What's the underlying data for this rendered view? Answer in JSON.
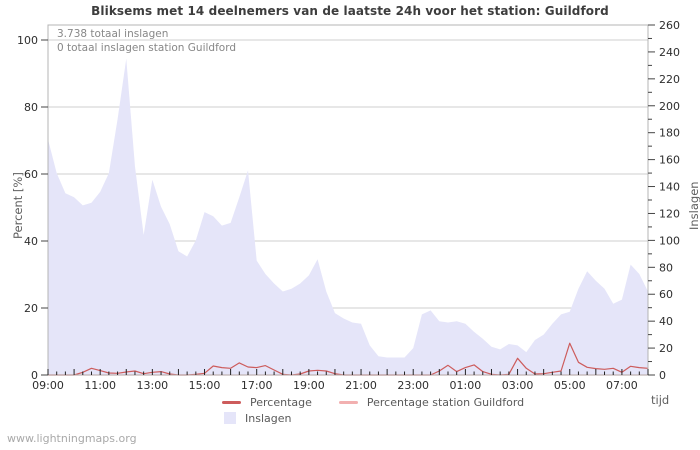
{
  "title": "Bliksems met 14 deelnemers van de laatste 24h voor het station: Guildford",
  "annotations": {
    "total_inslagen": "3.738 totaal inslagen",
    "station_inslagen": "0 totaal inslagen station Guildford"
  },
  "watermark": "www.lightningmaps.org",
  "legend": {
    "percentage": "Percentage",
    "station": "Percentage station Guildford",
    "inslagen": "Inslagen"
  },
  "colors": {
    "background": "#ffffff",
    "area": "#e5e5f9",
    "percentage_line": "#cd5c5c",
    "station_line": "#f2b0b0",
    "grid": "#cfcfcf",
    "frame": "#b4b4b4",
    "axis_tick": "#444444",
    "tick_label": "#2e2e2e"
  },
  "chart_data": {
    "type": "area+line",
    "title": "Bliksems met 14 deelnemers van de laatste 24h voor het station: Guildford",
    "x_axis": {
      "title": "tijd",
      "tick_labels": [
        "09:00",
        "11:00",
        "13:00",
        "15:00",
        "17:00",
        "19:00",
        "21:00",
        "23:00",
        "01:00",
        "03:00",
        "05:00",
        "07:00"
      ],
      "minor_tick_minutes": 20
    },
    "left_axis": {
      "title": "Percent [%]",
      "min": 0,
      "max": 100,
      "tick_step": 20
    },
    "right_axis": {
      "title": "Inslagen",
      "min": 0,
      "max": 260,
      "tick_step": 20,
      "minor_step": 10
    },
    "grid": "horizontal-only",
    "legend_position": "bottom-center",
    "time": [
      "09:00",
      "09:20",
      "09:40",
      "10:00",
      "10:20",
      "10:40",
      "11:00",
      "11:20",
      "11:40",
      "12:00",
      "12:20",
      "12:40",
      "13:00",
      "13:20",
      "13:40",
      "14:00",
      "14:20",
      "14:40",
      "15:00",
      "15:20",
      "15:40",
      "16:00",
      "16:20",
      "16:40",
      "17:00",
      "17:20",
      "17:40",
      "18:00",
      "18:20",
      "18:40",
      "19:00",
      "19:20",
      "19:40",
      "20:00",
      "20:20",
      "20:40",
      "21:00",
      "21:20",
      "21:40",
      "22:00",
      "22:20",
      "22:40",
      "23:00",
      "23:20",
      "23:40",
      "00:00",
      "00:20",
      "00:40",
      "01:00",
      "01:20",
      "01:40",
      "02:00",
      "02:20",
      "02:40",
      "03:00",
      "03:20",
      "03:40",
      "04:00",
      "04:20",
      "04:40",
      "05:00",
      "05:20",
      "05:40",
      "06:00",
      "06:20",
      "06:40",
      "07:00",
      "07:20",
      "07:40",
      "08:00"
    ],
    "series": [
      {
        "name": "Inslagen",
        "type": "area",
        "axis": "right",
        "color": "#e5e5f9",
        "values": [
          175,
          150,
          135,
          132,
          126,
          128,
          136,
          150,
          190,
          235,
          155,
          104,
          145,
          125,
          112,
          92,
          88,
          100,
          121,
          118,
          111,
          113,
          132,
          152,
          85,
          75,
          68,
          62,
          64,
          68,
          74,
          86,
          62,
          46,
          42,
          39,
          38,
          22,
          14,
          13,
          13,
          13,
          20,
          45,
          48,
          40,
          39,
          40,
          38,
          32,
          27,
          21,
          19,
          23,
          22,
          17,
          26,
          30,
          38,
          45,
          47,
          64,
          77,
          70,
          64,
          53,
          56,
          82,
          75,
          62
        ]
      },
      {
        "name": "Percentage",
        "type": "line",
        "axis": "left",
        "color": "#cd5c5c",
        "values": [
          0,
          0,
          0,
          0,
          0.8,
          2.0,
          1.3,
          0.6,
          0.5,
          0.9,
          1.2,
          0.4,
          0.8,
          1.0,
          0.3,
          0,
          0,
          0.2,
          0.5,
          2.7,
          2.2,
          2.0,
          3.6,
          2.4,
          2.2,
          2.8,
          1.5,
          0.2,
          0,
          0.3,
          1.2,
          1.4,
          1.2,
          0.4,
          0,
          0,
          0,
          0,
          0,
          0,
          0,
          0,
          0,
          0,
          0,
          1.2,
          2.9,
          1.0,
          2.2,
          3.0,
          1.0,
          0.2,
          0,
          0.2,
          5.0,
          2.0,
          0.3,
          0.4,
          0.8,
          1.2,
          9.5,
          3.8,
          2.3,
          1.9,
          1.7,
          2.0,
          0.8,
          2.6,
          2.2,
          2.0
        ]
      },
      {
        "name": "Percentage station Guildford",
        "type": "line",
        "axis": "left",
        "color": "#f2b0b0",
        "values": [
          0,
          0,
          0,
          0,
          0,
          0,
          0,
          0,
          0,
          0,
          0,
          0,
          0,
          0,
          0,
          0,
          0,
          0,
          0,
          0,
          0,
          0,
          0,
          0,
          0,
          0,
          0,
          0,
          0,
          0,
          0,
          0,
          0,
          0,
          0,
          0,
          0,
          0,
          0,
          0,
          0,
          0,
          0,
          0,
          0,
          0,
          0,
          0,
          0,
          0,
          0,
          0,
          0,
          0,
          0,
          0,
          0,
          0,
          0,
          0,
          0,
          0,
          0,
          0,
          0,
          0,
          0,
          0,
          0,
          0
        ]
      }
    ]
  }
}
